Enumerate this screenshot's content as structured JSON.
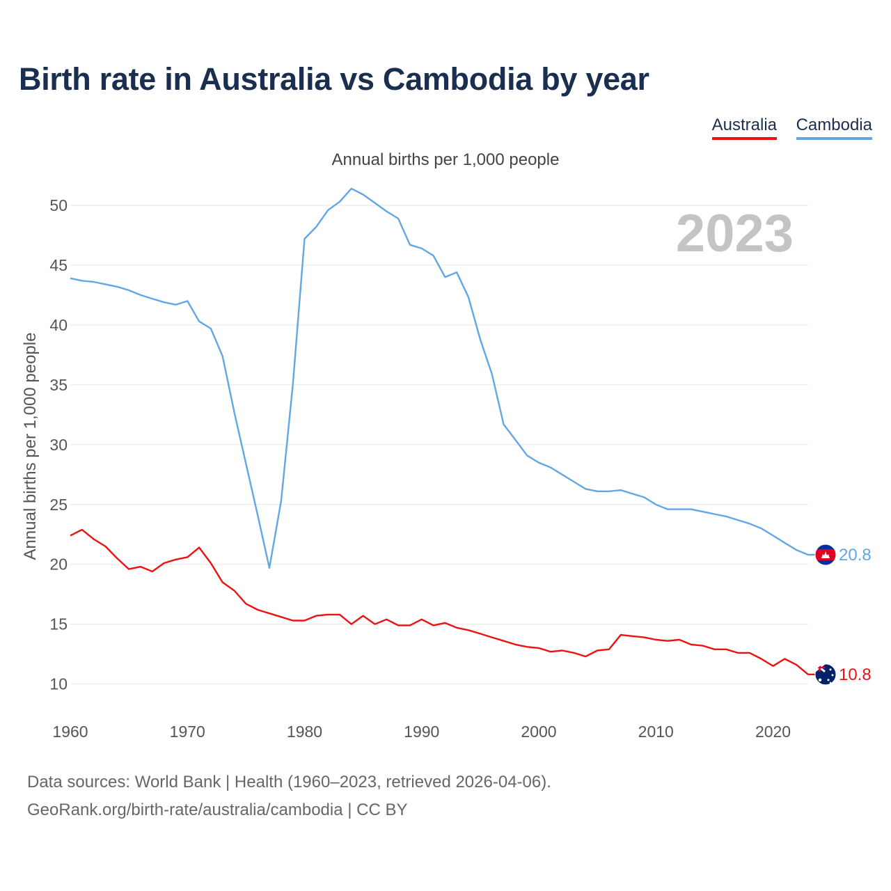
{
  "title": "Birth rate in Australia vs Cambodia by year",
  "subtitle": "Annual births per 1,000 people",
  "legend": [
    {
      "name": "Australia",
      "color": "#ee1111"
    },
    {
      "name": "Cambodia",
      "color": "#62a6e4"
    }
  ],
  "footer": {
    "line1": "Data sources: World Bank | Health (1960–2023, retrieved 2026-04-06).",
    "line2": "GeoRank.org/birth-rate/australia/cambodia | CC BY"
  },
  "chart_data": {
    "type": "line",
    "title": "Birth rate in Australia vs Cambodia by year",
    "ylabel": "Annual births per 1,000 people",
    "xlabel": "",
    "year_label": "2023",
    "xlim": [
      1960,
      2023
    ],
    "ylim": [
      8,
      52.5
    ],
    "x_ticks": [
      1960,
      1970,
      1980,
      1990,
      2000,
      2010,
      2020
    ],
    "y_ticks": [
      10,
      15,
      20,
      25,
      30,
      35,
      40,
      45,
      50
    ],
    "grid": true,
    "x": [
      1960,
      1961,
      1962,
      1963,
      1964,
      1965,
      1966,
      1967,
      1968,
      1969,
      1970,
      1971,
      1972,
      1973,
      1974,
      1975,
      1976,
      1977,
      1978,
      1979,
      1980,
      1981,
      1982,
      1983,
      1984,
      1985,
      1986,
      1987,
      1988,
      1989,
      1990,
      1991,
      1992,
      1993,
      1994,
      1995,
      1996,
      1997,
      1998,
      1999,
      2000,
      2001,
      2002,
      2003,
      2004,
      2005,
      2006,
      2007,
      2008,
      2009,
      2010,
      2011,
      2012,
      2013,
      2014,
      2015,
      2016,
      2017,
      2018,
      2019,
      2020,
      2021,
      2022,
      2023
    ],
    "series": [
      {
        "name": "Cambodia",
        "color": "#62a6e4",
        "end_label": "20.8",
        "values": [
          43.9,
          43.7,
          43.6,
          43.4,
          43.2,
          42.9,
          42.5,
          42.2,
          41.9,
          41.7,
          42.0,
          40.3,
          39.7,
          37.4,
          32.7,
          28.4,
          24.1,
          19.7,
          25.3,
          35.0,
          47.2,
          48.2,
          49.6,
          50.3,
          51.4,
          50.9,
          50.2,
          49.5,
          48.9,
          46.7,
          46.4,
          45.8,
          44.0,
          44.4,
          42.3,
          38.8,
          35.9,
          31.7,
          30.4,
          29.1,
          28.5,
          28.1,
          27.5,
          26.9,
          26.3,
          26.1,
          26.1,
          26.2,
          25.9,
          25.6,
          25.0,
          24.6,
          24.6,
          24.6,
          24.4,
          24.2,
          24.0,
          23.7,
          23.4,
          23.0,
          22.4,
          21.8,
          21.2,
          20.8
        ]
      },
      {
        "name": "Australia",
        "color": "#ee1111",
        "end_label": "10.8",
        "values": [
          22.4,
          22.9,
          22.1,
          21.5,
          20.5,
          19.6,
          19.8,
          19.4,
          20.1,
          20.4,
          20.6,
          21.4,
          20.1,
          18.5,
          17.8,
          16.7,
          16.2,
          15.9,
          15.6,
          15.3,
          15.3,
          15.7,
          15.8,
          15.8,
          15.0,
          15.7,
          15.0,
          15.4,
          14.9,
          14.9,
          15.4,
          14.9,
          15.1,
          14.7,
          14.5,
          14.2,
          13.9,
          13.6,
          13.3,
          13.1,
          13.0,
          12.7,
          12.8,
          12.6,
          12.3,
          12.8,
          12.9,
          14.1,
          14.0,
          13.9,
          13.7,
          13.6,
          13.7,
          13.3,
          13.2,
          12.9,
          12.9,
          12.6,
          12.6,
          12.1,
          11.5,
          12.1,
          11.6,
          10.8
        ]
      }
    ]
  }
}
